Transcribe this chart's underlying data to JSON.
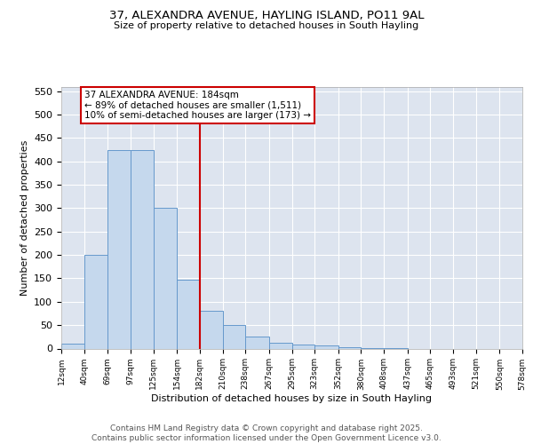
{
  "title_line1": "37, ALEXANDRA AVENUE, HAYLING ISLAND, PO11 9AL",
  "title_line2": "Size of property relative to detached houses in South Hayling",
  "xlabel": "Distribution of detached houses by size in South Hayling",
  "ylabel": "Number of detached properties",
  "bar_color": "#c5d8ed",
  "bar_edge_color": "#6699cc",
  "background_color": "#dde4ef",
  "annotation_box_text": "37 ALEXANDRA AVENUE: 184sqm\n← 89% of detached houses are smaller (1,511)\n10% of semi-detached houses are larger (173) →",
  "vline_x": 182,
  "vline_color": "#cc0000",
  "annotation_box_edgecolor": "#cc0000",
  "annotation_text_fontsize": 7.5,
  "bins": [
    12,
    40,
    69,
    97,
    125,
    154,
    182,
    210,
    238,
    267,
    295,
    323,
    352,
    380,
    408,
    437,
    465,
    493,
    521,
    550,
    578
  ],
  "counts": [
    10,
    200,
    425,
    425,
    300,
    148,
    80,
    50,
    25,
    12,
    8,
    7,
    3,
    1,
    1,
    0,
    0,
    0,
    0,
    0
  ],
  "ylim": [
    0,
    560
  ],
  "yticks": [
    0,
    50,
    100,
    150,
    200,
    250,
    300,
    350,
    400,
    450,
    500,
    550
  ],
  "footer_text": "Contains HM Land Registry data © Crown copyright and database right 2025.\nContains public sector information licensed under the Open Government Licence v3.0.",
  "footer_fontsize": 6.5,
  "title_fontsize1": 9.5,
  "title_fontsize2": 8.0,
  "ylabel_fontsize": 8,
  "xlabel_fontsize": 8,
  "ytick_fontsize": 8,
  "xtick_fontsize": 6.5
}
